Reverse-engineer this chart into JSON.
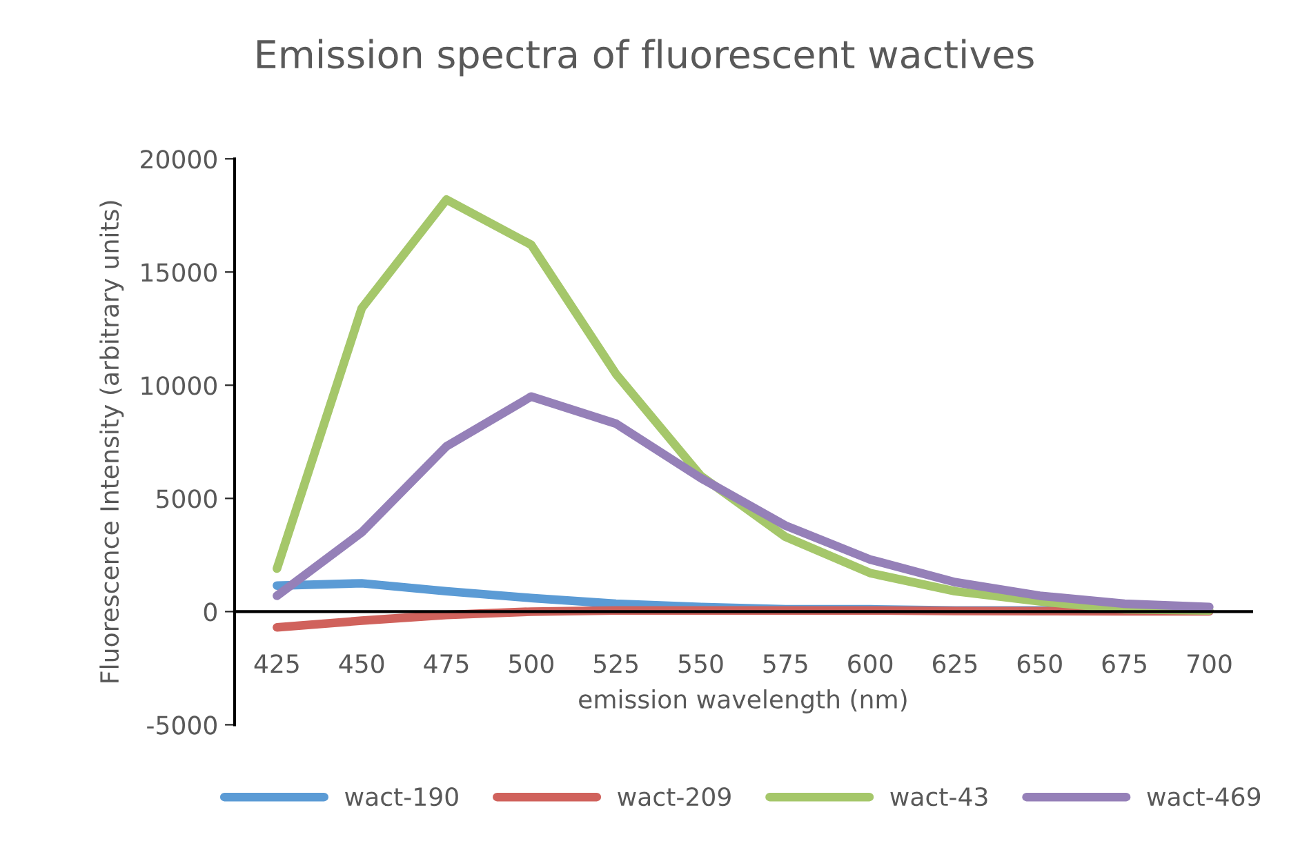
{
  "chart_data": {
    "type": "line",
    "title": "Emission spectra of fluorescent wactives",
    "xlabel": "emission wavelength (nm)",
    "ylabel": "Fluorescence Intensity (arbitrary units)",
    "categories": [
      "425",
      "450",
      "475",
      "500",
      "525",
      "550",
      "575",
      "600",
      "625",
      "650",
      "675",
      "700"
    ],
    "series": [
      {
        "name": "wact-190",
        "color": "#5b9bd5",
        "values": [
          1150,
          1250,
          900,
          600,
          350,
          200,
          100,
          100,
          50,
          50,
          30,
          20
        ]
      },
      {
        "name": "wact-209",
        "color": "#d0625c",
        "values": [
          -700,
          -400,
          -150,
          0,
          50,
          50,
          50,
          50,
          30,
          20,
          10,
          10
        ]
      },
      {
        "name": "wact-43",
        "color": "#a5c76a",
        "values": [
          1900,
          13400,
          18200,
          16200,
          10500,
          6000,
          3300,
          1700,
          900,
          450,
          100,
          50
        ]
      },
      {
        "name": "wact-469",
        "color": "#9580b8",
        "values": [
          700,
          3500,
          7300,
          9500,
          8300,
          5900,
          3800,
          2300,
          1300,
          700,
          350,
          200
        ]
      }
    ],
    "ylim": [
      -5000,
      20000
    ],
    "yticks": [
      -5000,
      0,
      5000,
      10000,
      15000,
      20000
    ],
    "grid": false,
    "legend": "bottom",
    "marker": "none",
    "line_style": "solid"
  }
}
